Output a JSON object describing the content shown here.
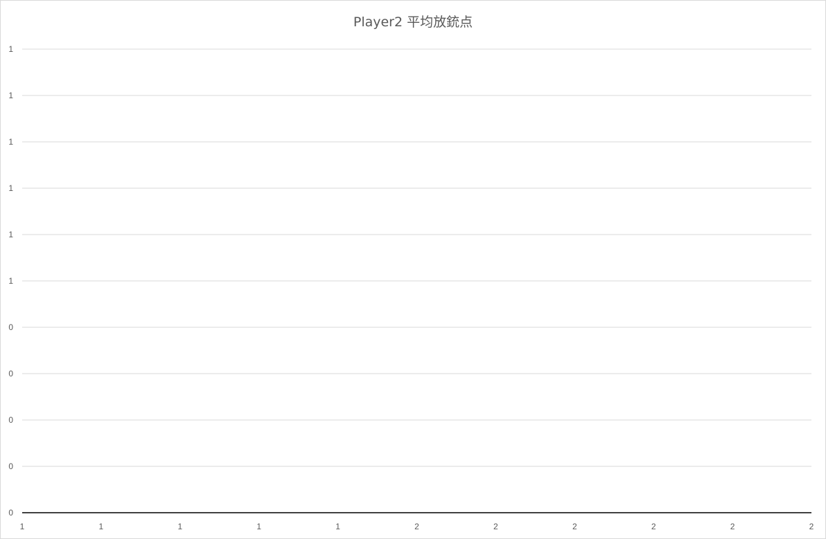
{
  "chart_data": {
    "type": "line",
    "title": "Player2 平均放銃点",
    "xlabel": "",
    "ylabel": "",
    "y_tick_labels": [
      "1",
      "1",
      "1",
      "1",
      "1",
      "1",
      "0",
      "0",
      "0",
      "0",
      "0"
    ],
    "x_tick_labels": [
      "1",
      "1",
      "1",
      "1",
      "1",
      "2",
      "2",
      "2",
      "2",
      "2",
      "2"
    ],
    "series": [
      {
        "values": [
          0,
          0,
          0,
          0,
          0,
          0,
          0,
          0,
          0,
          0,
          0
        ]
      }
    ],
    "grid": true,
    "legend": "none"
  },
  "colors": {
    "gridline": "#d9d9d9",
    "axis_line": "#404040",
    "series_line": "#404040",
    "text": "#595959"
  }
}
